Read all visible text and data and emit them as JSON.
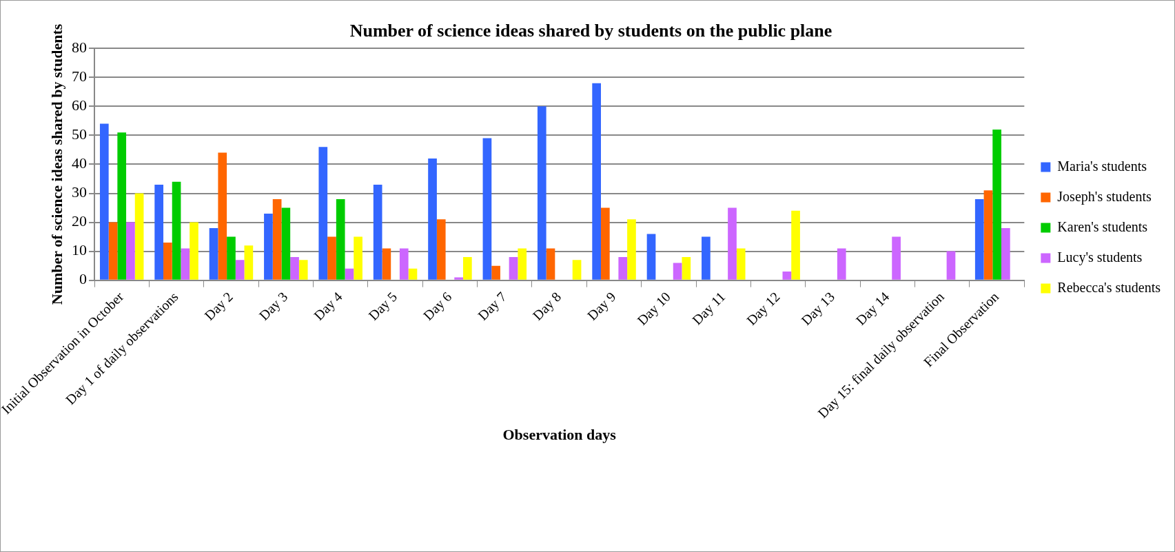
{
  "chart_data": {
    "type": "bar",
    "title": "Number of science ideas shared by students on the public plane",
    "xlabel": "Observation days",
    "ylabel": "Number of science ideas shared by students",
    "categories": [
      "Initial Observation in October",
      "Day 1 of daily observations",
      "Day 2",
      "Day 3",
      "Day 4",
      "Day 5",
      "Day 6",
      "Day 7",
      "Day 8",
      "Day 9",
      "Day 10",
      "Day 11",
      "Day 12",
      "Day 13",
      "Day 14",
      "Day 15: final daily observation",
      "Final Observation"
    ],
    "series": [
      {
        "name": "Maria's students",
        "color": "#3366ff",
        "values": [
          54,
          33,
          18,
          23,
          46,
          33,
          42,
          49,
          60,
          68,
          16,
          15,
          null,
          null,
          null,
          null,
          28
        ]
      },
      {
        "name": "Joseph's students",
        "color": "#ff6600",
        "values": [
          20,
          13,
          44,
          28,
          15,
          11,
          21,
          5,
          11,
          25,
          null,
          null,
          null,
          null,
          null,
          null,
          31
        ]
      },
      {
        "name": "Karen's students",
        "color": "#00cc00",
        "values": [
          51,
          34,
          15,
          25,
          28,
          null,
          null,
          null,
          null,
          null,
          null,
          null,
          null,
          null,
          null,
          null,
          52
        ]
      },
      {
        "name": "Lucy's students",
        "color": "#cc66ff",
        "values": [
          20,
          11,
          7,
          8,
          4,
          11,
          1,
          8,
          null,
          8,
          6,
          25,
          3,
          11,
          15,
          10,
          18
        ]
      },
      {
        "name": "Rebecca's students",
        "color": "#ffff00",
        "values": [
          30,
          20,
          12,
          7,
          15,
          4,
          8,
          11,
          7,
          21,
          8,
          11,
          24,
          null,
          null,
          null,
          null
        ]
      }
    ],
    "ylim": [
      0,
      80
    ],
    "yticks": [
      0,
      10,
      20,
      30,
      40,
      50,
      60,
      70,
      80
    ],
    "grid": "y",
    "legend": "right"
  }
}
